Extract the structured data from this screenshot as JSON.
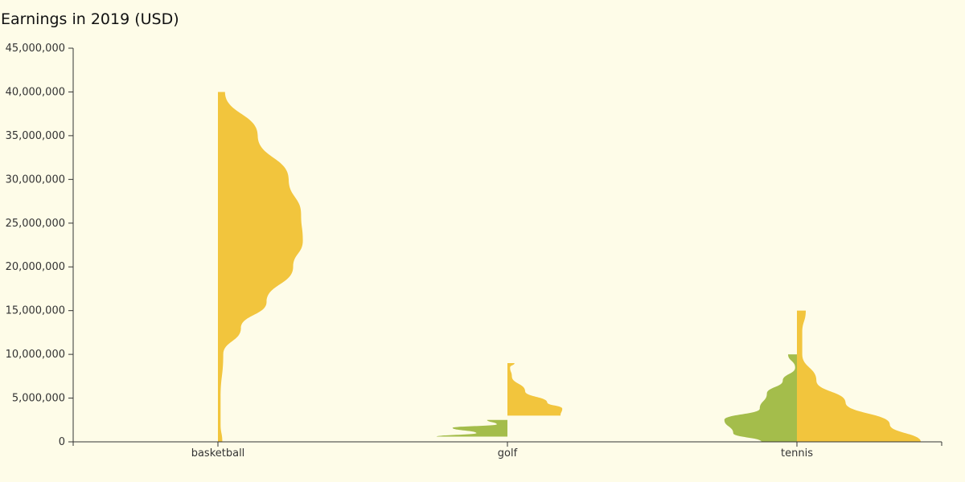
{
  "chart_data": {
    "type": "violin",
    "title": "Earnings in 2019 (USD)",
    "xlabel": "",
    "ylabel": "",
    "ylim": [
      0,
      45000000
    ],
    "yticks": [
      0,
      5000000,
      10000000,
      15000000,
      20000000,
      25000000,
      30000000,
      35000000,
      40000000,
      45000000
    ],
    "ytick_labels": [
      "0",
      "5,000,000",
      "10,000,000",
      "15,000,000",
      "20,000,000",
      "25,000,000",
      "30,000,000",
      "35,000,000",
      "40,000,000",
      "45,000,000"
    ],
    "categories": [
      "basketball",
      "golf",
      "tennis"
    ],
    "grid": false,
    "colors": {
      "left_half": "#a4bd4b",
      "right_half": "#f2c53d"
    },
    "halves": [
      {
        "category": "basketball",
        "side": "right",
        "color": "#f2c53d",
        "density": [
          [
            0,
            0.05
          ],
          [
            2000000,
            0.03
          ],
          [
            5000000,
            0.03
          ],
          [
            10000000,
            0.06
          ],
          [
            13000000,
            0.26
          ],
          [
            16000000,
            0.55
          ],
          [
            20000000,
            0.85
          ],
          [
            23000000,
            0.96
          ],
          [
            26000000,
            0.94
          ],
          [
            30000000,
            0.8
          ],
          [
            35000000,
            0.45
          ],
          [
            40000000,
            0.08
          ]
        ]
      },
      {
        "category": "golf",
        "side": "left",
        "color": "#a4bd4b",
        "density": [
          [
            600000,
            0.8
          ],
          [
            1000000,
            0.35
          ],
          [
            1600000,
            0.62
          ],
          [
            2000000,
            0.12
          ],
          [
            2500000,
            0.23
          ]
        ]
      },
      {
        "category": "golf",
        "side": "right",
        "color": "#f2c53d",
        "density": [
          [
            3000000,
            0.6
          ],
          [
            3800000,
            0.62
          ],
          [
            4500000,
            0.45
          ],
          [
            5800000,
            0.2
          ],
          [
            7500000,
            0.05
          ],
          [
            8500000,
            0.03
          ],
          [
            9000000,
            0.08
          ]
        ]
      },
      {
        "category": "tennis",
        "side": "left",
        "color": "#a4bd4b",
        "density": [
          [
            0,
            0.4
          ],
          [
            1000000,
            0.72
          ],
          [
            2500000,
            0.82
          ],
          [
            3800000,
            0.42
          ],
          [
            5500000,
            0.34
          ],
          [
            7000000,
            0.16
          ],
          [
            8500000,
            0.02
          ],
          [
            10000000,
            0.1
          ]
        ]
      },
      {
        "category": "tennis",
        "side": "right",
        "color": "#f2c53d",
        "density": [
          [
            0,
            1.4
          ],
          [
            2000000,
            1.05
          ],
          [
            4500000,
            0.55
          ],
          [
            7000000,
            0.22
          ],
          [
            10000000,
            0.06
          ],
          [
            12500000,
            0.06
          ],
          [
            15000000,
            0.1
          ]
        ]
      }
    ]
  }
}
